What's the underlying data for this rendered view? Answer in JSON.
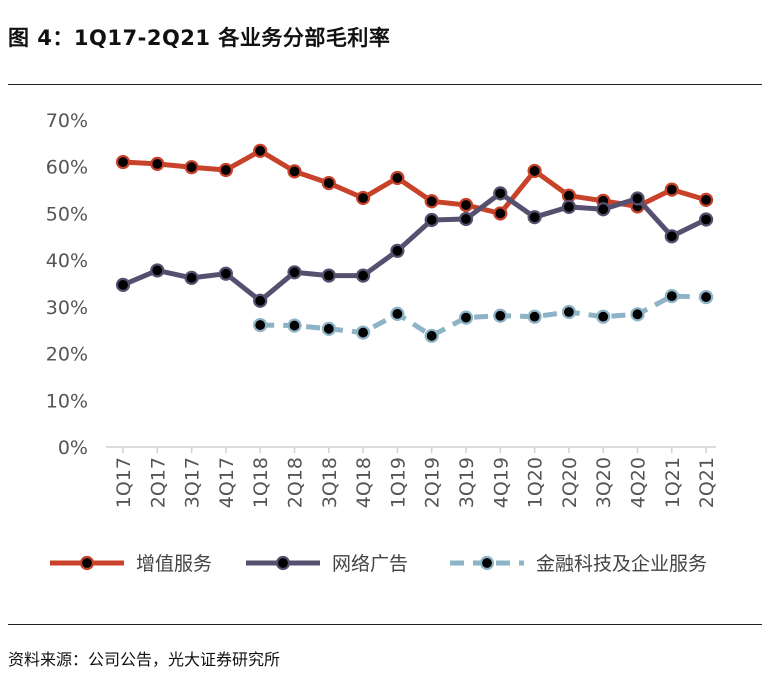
{
  "figure": {
    "title": "图 4：1Q17-2Q21 各业务分部毛利率",
    "source": "资料来源：公司公告，光大证券研究所"
  },
  "colors": {
    "series_1": "#c8422a",
    "series_2": "#565070",
    "series_3": "#8db3c6",
    "marker": "#000000",
    "axis": "#d0d0d0",
    "text": "#555555"
  },
  "chart_data": {
    "type": "line",
    "title": "",
    "xlabel": "",
    "ylabel": "",
    "ylim": [
      0,
      70
    ],
    "yticks": [
      "0%",
      "10%",
      "20%",
      "30%",
      "40%",
      "50%",
      "60%",
      "70%"
    ],
    "grid": false,
    "legend_position": "bottom",
    "categories": [
      "1Q17",
      "2Q17",
      "3Q17",
      "4Q17",
      "1Q18",
      "2Q18",
      "3Q18",
      "4Q18",
      "1Q19",
      "2Q19",
      "3Q19",
      "4Q19",
      "1Q20",
      "2Q20",
      "3Q20",
      "4Q20",
      "1Q21",
      "2Q21"
    ],
    "series": [
      {
        "name": "增值服务",
        "style": "solid",
        "values": [
          61.0,
          60.6,
          59.9,
          59.3,
          63.4,
          59.0,
          56.5,
          53.3,
          57.6,
          52.6,
          51.8,
          50.0,
          59.1,
          53.8,
          52.7,
          51.5,
          55.1,
          52.9
        ]
      },
      {
        "name": "网络广告",
        "style": "solid",
        "values": [
          34.7,
          37.8,
          36.2,
          37.1,
          31.3,
          37.4,
          36.7,
          36.7,
          42.0,
          48.6,
          48.8,
          54.3,
          49.2,
          51.4,
          50.9,
          53.2,
          45.1,
          48.7
        ]
      },
      {
        "name": "金融科技及企业服务",
        "style": "dashed",
        "values": [
          null,
          null,
          null,
          null,
          26.1,
          26.0,
          25.3,
          24.5,
          28.5,
          23.8,
          27.7,
          28.1,
          27.9,
          28.9,
          27.9,
          28.4,
          32.3,
          32.1
        ]
      }
    ]
  }
}
